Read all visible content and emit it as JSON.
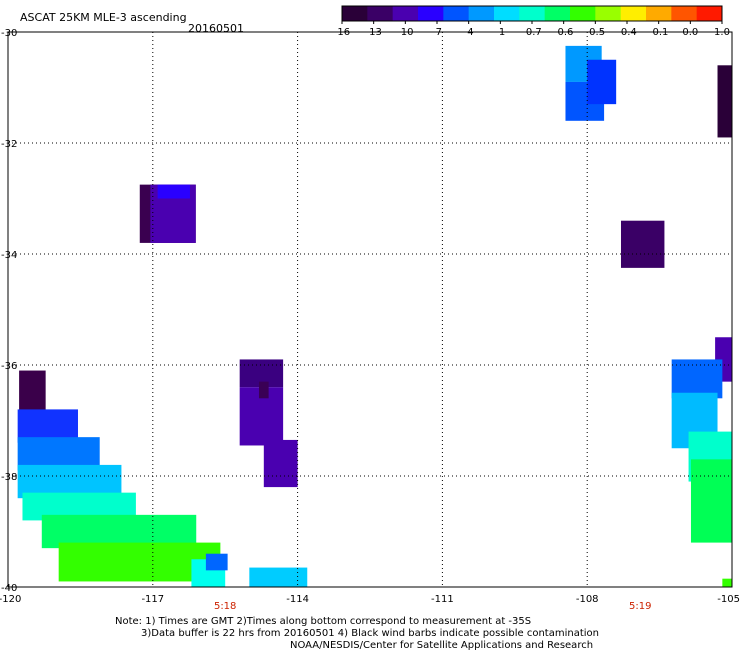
{
  "title": "ASCAT 25KM MLE-3 ascending",
  "date": "20160501",
  "colorbar": {
    "ticks": [
      "-16",
      "-13",
      "-10",
      "-7",
      "-4",
      "-1",
      "-0.7",
      "-0.6",
      "-0.5",
      "-0.4",
      "-0.1",
      "0.0",
      "1.0"
    ],
    "colors": [
      "#2a0038",
      "#3a0066",
      "#4a00b0",
      "#2a00ff",
      "#0055ff",
      "#0099ff",
      "#00ddff",
      "#00ffcc",
      "#00ff66",
      "#33ff00",
      "#99ff00",
      "#ffee00",
      "#ffaa00",
      "#ff5500",
      "#ff1a00"
    ]
  },
  "axes": {
    "lon_labels": [
      "-120",
      "-117",
      "-114",
      "-111",
      "-108",
      "-105"
    ],
    "lat_labels": [
      "-30",
      "-32",
      "-34",
      "-36",
      "-38",
      "-40"
    ],
    "lon_range": [
      -120,
      -105
    ],
    "lat_range": [
      -30,
      -40
    ]
  },
  "time_labels": [
    {
      "text": "5:18",
      "lon": -115.5
    },
    {
      "text": "5:19",
      "lon": -106.9
    }
  ],
  "notes": [
    "Note: 1) Times are GMT 2)Times along bottom correspond to measurement at -35S",
    "3)Data buffer is 22 hrs from 20160501 4) Black wind barbs indicate possible contamination",
    "NOAA/NESDIS/Center for Satellite Applications and Research"
  ],
  "swath_cells": [
    {
      "lon": [
        -119.77,
        -119.22
      ],
      "lat": [
        -36.1,
        -37.0
      ],
      "color": "#3a004a"
    },
    {
      "lon": [
        -117.27,
        -116.11
      ],
      "lat": [
        -32.75,
        -33.8
      ],
      "color": "#3a0050"
    },
    {
      "lon": [
        -117.05,
        -116.11
      ],
      "lat": [
        -32.75,
        -33.8
      ],
      "color": "#4a00b0"
    },
    {
      "lon": [
        -116.9,
        -116.23
      ],
      "lat": [
        -32.75,
        -33.0
      ],
      "color": "#2a00ff"
    },
    {
      "lon": [
        -115.2,
        -114.3
      ],
      "lat": [
        -35.9,
        -36.4
      ],
      "color": "#3a0080"
    },
    {
      "lon": [
        -115.2,
        -114.3
      ],
      "lat": [
        -36.4,
        -37.45
      ],
      "color": "#4a00b0"
    },
    {
      "lon": [
        -114.8,
        -114.6
      ],
      "lat": [
        -36.3,
        -36.6
      ],
      "color": "#3a0055"
    },
    {
      "lon": [
        -114.7,
        -114.0
      ],
      "lat": [
        -37.35,
        -38.2
      ],
      "color": "#4a00b0"
    },
    {
      "lon": [
        -119.8,
        -118.55
      ],
      "lat": [
        -36.8,
        -37.4
      ],
      "color": "#1133ff"
    },
    {
      "lon": [
        -119.8,
        -118.1
      ],
      "lat": [
        -37.3,
        -37.9
      ],
      "color": "#0077ff"
    },
    {
      "lon": [
        -119.8,
        -117.65
      ],
      "lat": [
        -37.8,
        -38.4
      ],
      "color": "#00c4ff"
    },
    {
      "lon": [
        -119.7,
        -117.35
      ],
      "lat": [
        -38.3,
        -38.8
      ],
      "color": "#00ffcc"
    },
    {
      "lon": [
        -119.3,
        -116.1
      ],
      "lat": [
        -38.7,
        -39.3
      ],
      "color": "#00ff66"
    },
    {
      "lon": [
        -118.95,
        -115.6
      ],
      "lat": [
        -39.2,
        -39.9
      ],
      "color": "#33ff00"
    },
    {
      "lon": [
        -116.2,
        -115.5
      ],
      "lat": [
        -39.5,
        -40.0
      ],
      "color": "#00ffee"
    },
    {
      "lon": [
        -115.9,
        -115.45
      ],
      "lat": [
        -39.4,
        -39.7
      ],
      "color": "#0066ff"
    },
    {
      "lon": [
        -115.0,
        -113.8
      ],
      "lat": [
        -39.65,
        -40.0
      ],
      "color": "#00ccff"
    },
    {
      "lon": [
        -108.45,
        -107.7
      ],
      "lat": [
        -30.25,
        -30.9
      ],
      "color": "#0099ff"
    },
    {
      "lon": [
        -108.45,
        -107.65
      ],
      "lat": [
        -30.9,
        -31.6
      ],
      "color": "#0055ff"
    },
    {
      "lon": [
        -108.0,
        -107.4
      ],
      "lat": [
        -30.5,
        -31.3
      ],
      "color": "#0033ff"
    },
    {
      "lon": [
        -107.3,
        -106.4
      ],
      "lat": [
        -33.4,
        -34.25
      ],
      "color": "#3a0066"
    },
    {
      "lon": [
        -105.3,
        -105.0
      ],
      "lat": [
        -30.6,
        -31.9
      ],
      "color": "#2a0038"
    },
    {
      "lon": [
        -105.35,
        -105.0
      ],
      "lat": [
        -35.5,
        -36.3
      ],
      "color": "#4a00b0"
    },
    {
      "lon": [
        -106.25,
        -105.2
      ],
      "lat": [
        -35.9,
        -36.6
      ],
      "color": "#0066ff"
    },
    {
      "lon": [
        -106.25,
        -105.3
      ],
      "lat": [
        -36.5,
        -37.5
      ],
      "color": "#00bbff"
    },
    {
      "lon": [
        -105.9,
        -105.0
      ],
      "lat": [
        -37.2,
        -38.1
      ],
      "color": "#00ffcc"
    },
    {
      "lon": [
        -105.85,
        -105.0
      ],
      "lat": [
        -37.7,
        -39.2
      ],
      "color": "#00ff55"
    },
    {
      "lon": [
        -105.2,
        -105.0
      ],
      "lat": [
        -39.85,
        -40.0
      ],
      "color": "#33ff00"
    }
  ]
}
